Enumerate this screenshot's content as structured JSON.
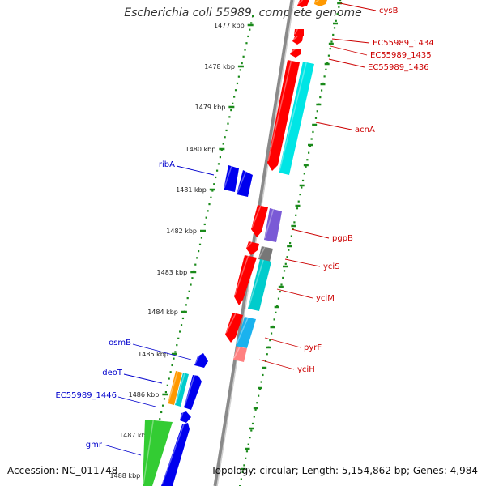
{
  "title": "Escherichia coli 55989, complete genome",
  "footer": {
    "accession": "Accession: NC_011748",
    "summary": "Topology: circular; Length: 5,154,862 bp; Genes: 4,984"
  },
  "colors": {
    "background": "#ffffff",
    "backbone": "#8a8a8a",
    "ruler_dots": "#1a8a1a",
    "right_label": "#cc0000",
    "left_label": "#0000cc"
  },
  "ruler": {
    "ticks": [
      {
        "label": "1477 kbp"
      },
      {
        "label": "1478 kbp"
      },
      {
        "label": "1479 kbp"
      },
      {
        "label": "1480 kbp"
      },
      {
        "label": "1481 kbp"
      },
      {
        "label": "1482 kbp"
      },
      {
        "label": "1483 kbp"
      },
      {
        "label": "1484 kbp"
      },
      {
        "label": "1485 kbp"
      },
      {
        "label": "1486 kbp"
      },
      {
        "label": "1487 kbp"
      },
      {
        "label": "1488 kbp"
      }
    ]
  },
  "right_labels": [
    "cysB",
    "EC55989_1434",
    "EC55989_1435",
    "EC55989_1436",
    "acnA",
    "pgpB",
    "yciS",
    "yciM",
    "pyrF",
    "yciH"
  ],
  "left_labels": [
    "ribA",
    "osmB",
    "deoT",
    "EC55989_1446",
    "gmr"
  ],
  "features": [
    {
      "name": "cysB",
      "color": "#ff0000",
      "strand": "reverse"
    },
    {
      "name": "cysB-2",
      "color": "#ff9900",
      "strand": "reverse"
    },
    {
      "name": "EC55989_1434",
      "color": "#ff0000",
      "strand": "reverse"
    },
    {
      "name": "EC55989_1435",
      "color": "#ff0000",
      "strand": "reverse"
    },
    {
      "name": "EC55989_1436",
      "color": "#ff0000",
      "strand": "reverse"
    },
    {
      "name": "acnA",
      "color": "#ff0000",
      "strand": "reverse"
    },
    {
      "name": "acnA-cds",
      "color": "#00e5e5",
      "strand": "reverse"
    },
    {
      "name": "ribA-1",
      "color": "#0000ee",
      "strand": "forward"
    },
    {
      "name": "ribA-2",
      "color": "#0000ee",
      "strand": "forward"
    },
    {
      "name": "pgpB",
      "color": "#ff0000",
      "strand": "reverse"
    },
    {
      "name": "pgpB-cds",
      "color": "#7a5ad6",
      "strand": "reverse"
    },
    {
      "name": "yciS",
      "color": "#ff0000",
      "strand": "reverse"
    },
    {
      "name": "yciS-cds",
      "color": "#777777",
      "strand": "reverse"
    },
    {
      "name": "yciM",
      "color": "#ff0000",
      "strand": "reverse"
    },
    {
      "name": "yciM-cds",
      "color": "#00cccc",
      "strand": "reverse"
    },
    {
      "name": "pyrF",
      "color": "#ff0000",
      "strand": "reverse"
    },
    {
      "name": "pyrF-cds",
      "color": "#1ab2ee",
      "strand": "reverse"
    },
    {
      "name": "yciH",
      "color": "#ff8080",
      "strand": "reverse"
    },
    {
      "name": "osmB",
      "color": "#0000ee",
      "strand": "forward"
    },
    {
      "name": "deoT",
      "color": "#ff9900",
      "strand": "forward"
    },
    {
      "name": "deoT-2",
      "color": "#00cccc",
      "strand": "forward"
    },
    {
      "name": "deoT-3",
      "color": "#0000ee",
      "strand": "forward"
    },
    {
      "name": "EC55989_1446",
      "color": "#0000ee",
      "strand": "forward"
    },
    {
      "name": "gmr",
      "color": "#33cc33",
      "strand": "forward"
    },
    {
      "name": "gmr-2",
      "color": "#0000ee",
      "strand": "forward"
    }
  ]
}
